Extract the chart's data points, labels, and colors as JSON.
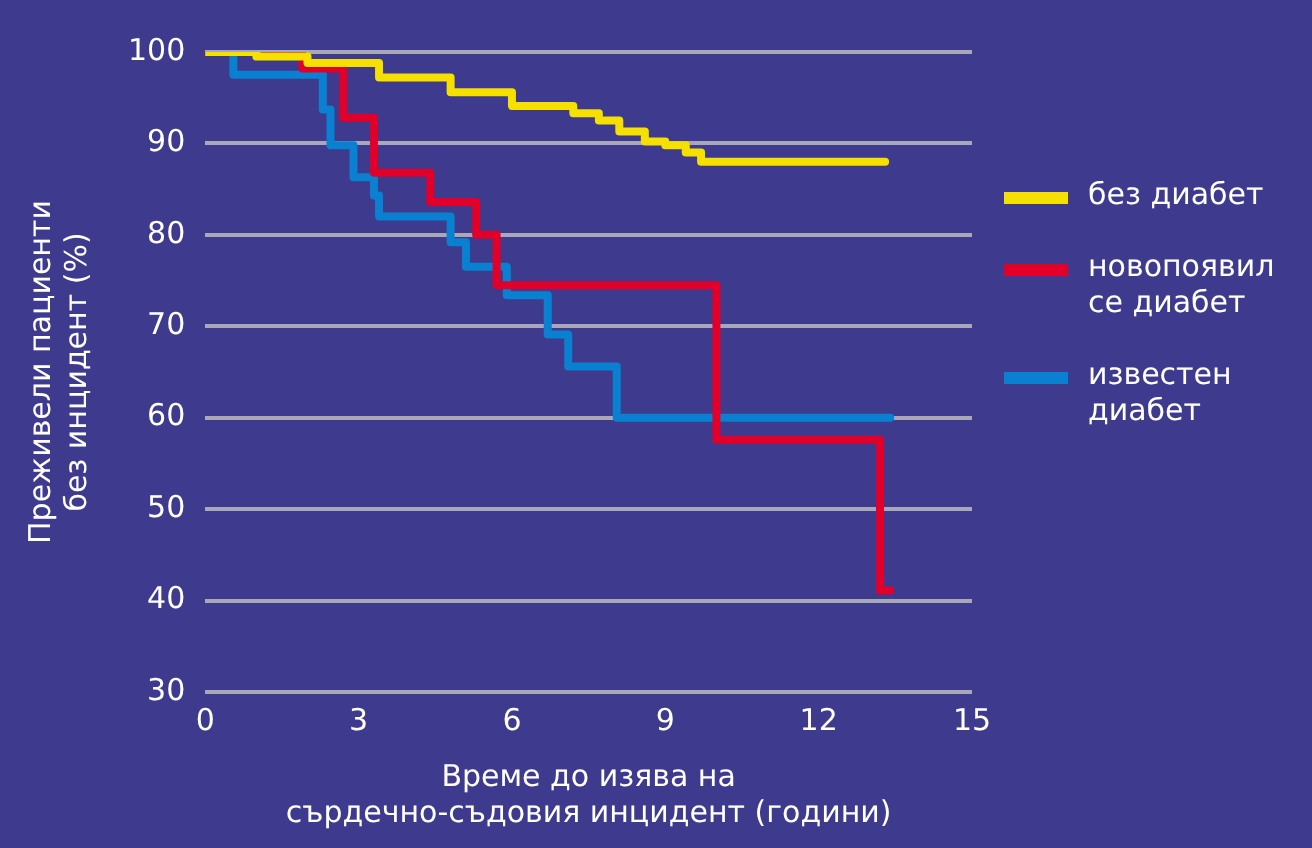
{
  "chart_data": {
    "type": "step",
    "xlabel": "Време до изява на сърдечно-съдовия инцидент (години)",
    "ylabel": "Преживели пациенти без инцидент (%)",
    "xlim": [
      0,
      15
    ],
    "xticks": [
      0,
      3,
      6,
      9,
      12,
      15
    ],
    "ylim": [
      30,
      100
    ],
    "yticks": [
      30,
      40,
      50,
      60,
      70,
      80,
      90,
      100
    ],
    "grid": "y",
    "legend": "right",
    "line_style": "solid",
    "marker": "none",
    "series": [
      {
        "name": "без диабет",
        "color": "#f5e000",
        "x": [
          0,
          1.0,
          2.0,
          3.4,
          4.8,
          6.0,
          7.2,
          7.7,
          8.1,
          8.6,
          9.0,
          9.4,
          9.7,
          13.3
        ],
        "values": [
          100,
          99.5,
          98.8,
          97.2,
          95.6,
          94.1,
          93.3,
          92.5,
          91.3,
          90.2,
          89.8,
          89,
          88,
          88
        ]
      },
      {
        "name": "новопоявил се диабет",
        "color": "#e0002a",
        "x": [
          0,
          1.9,
          2.7,
          3.3,
          4.4,
          5.3,
          5.7,
          10.0,
          13.2,
          13.4
        ],
        "values": [
          100,
          98.2,
          92.8,
          86.8,
          83.6,
          80,
          74.5,
          57.6,
          41.1,
          41.1
        ]
      },
      {
        "name": "известен диабет",
        "color": "#0a80d0",
        "x": [
          0,
          0.55,
          2.3,
          2.45,
          2.9,
          3.3,
          3.4,
          4.8,
          5.1,
          5.9,
          6.7,
          7.1,
          8.05,
          13.4
        ],
        "values": [
          100,
          97.5,
          93.7,
          89.8,
          86.3,
          84.3,
          82,
          79.2,
          76.5,
          73.4,
          69.1,
          65.6,
          60,
          60
        ]
      }
    ]
  }
}
